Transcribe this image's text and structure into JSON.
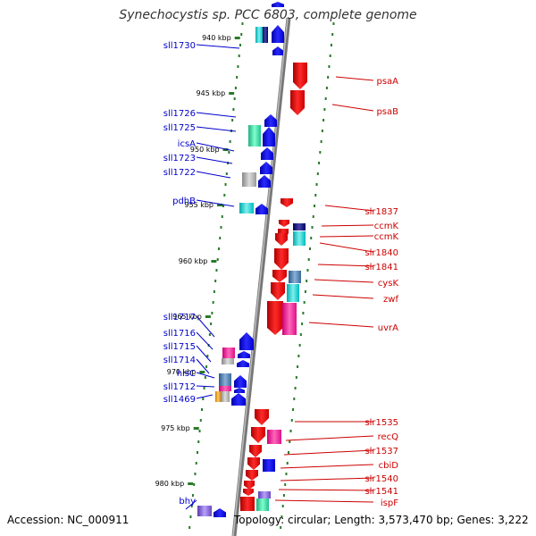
{
  "title": "Synechocystis sp. PCC 6803, complete genome",
  "accession": "Accession: NC_000911",
  "topology": "Topology: circular; Length: 3,573,470 bp; Genes: 3,222",
  "colors": {
    "forward_strand_labels": "#0000cc",
    "reverse_strand_labels": "#cc0000",
    "forward_gene": "#0000ee",
    "reverse_gene": "#ee0000",
    "backbone": "#8a8a8a",
    "dotted_track": "#2a7a2a"
  },
  "scale_ticks": [
    {
      "label": "940 kbp"
    },
    {
      "label": "945 kbp"
    },
    {
      "label": "950 kbp"
    },
    {
      "label": "955 kbp"
    },
    {
      "label": "960 kbp"
    },
    {
      "label": "965 kbp"
    },
    {
      "label": "970 kbp"
    },
    {
      "label": "975 kbp"
    },
    {
      "label": "980 kbp"
    }
  ],
  "left_labels": [
    {
      "name": "sll1730"
    },
    {
      "name": "sll1726"
    },
    {
      "name": "sll1725"
    },
    {
      "name": "icsA"
    },
    {
      "name": "sll1723"
    },
    {
      "name": "sll1722"
    },
    {
      "name": "pdhB"
    },
    {
      "name": "sll1717"
    },
    {
      "name": "sll1716"
    },
    {
      "name": "sll1715"
    },
    {
      "name": "sll1714"
    },
    {
      "name": "hisC"
    },
    {
      "name": "sll1712"
    },
    {
      "name": "sll1469"
    },
    {
      "name": "bhy"
    }
  ],
  "right_labels": [
    {
      "name": "psaA"
    },
    {
      "name": "psaB"
    },
    {
      "name": "slr1837"
    },
    {
      "name": "ccmK"
    },
    {
      "name": "ccmK"
    },
    {
      "name": "slr1840"
    },
    {
      "name": "slr1841"
    },
    {
      "name": "cysK"
    },
    {
      "name": "zwf"
    },
    {
      "name": "uvrA"
    },
    {
      "name": "slr1535"
    },
    {
      "name": "recQ"
    },
    {
      "name": "slr1537"
    },
    {
      "name": "cbiD"
    },
    {
      "name": "slr1540"
    },
    {
      "name": "slr1541"
    },
    {
      "name": "ispF"
    }
  ]
}
